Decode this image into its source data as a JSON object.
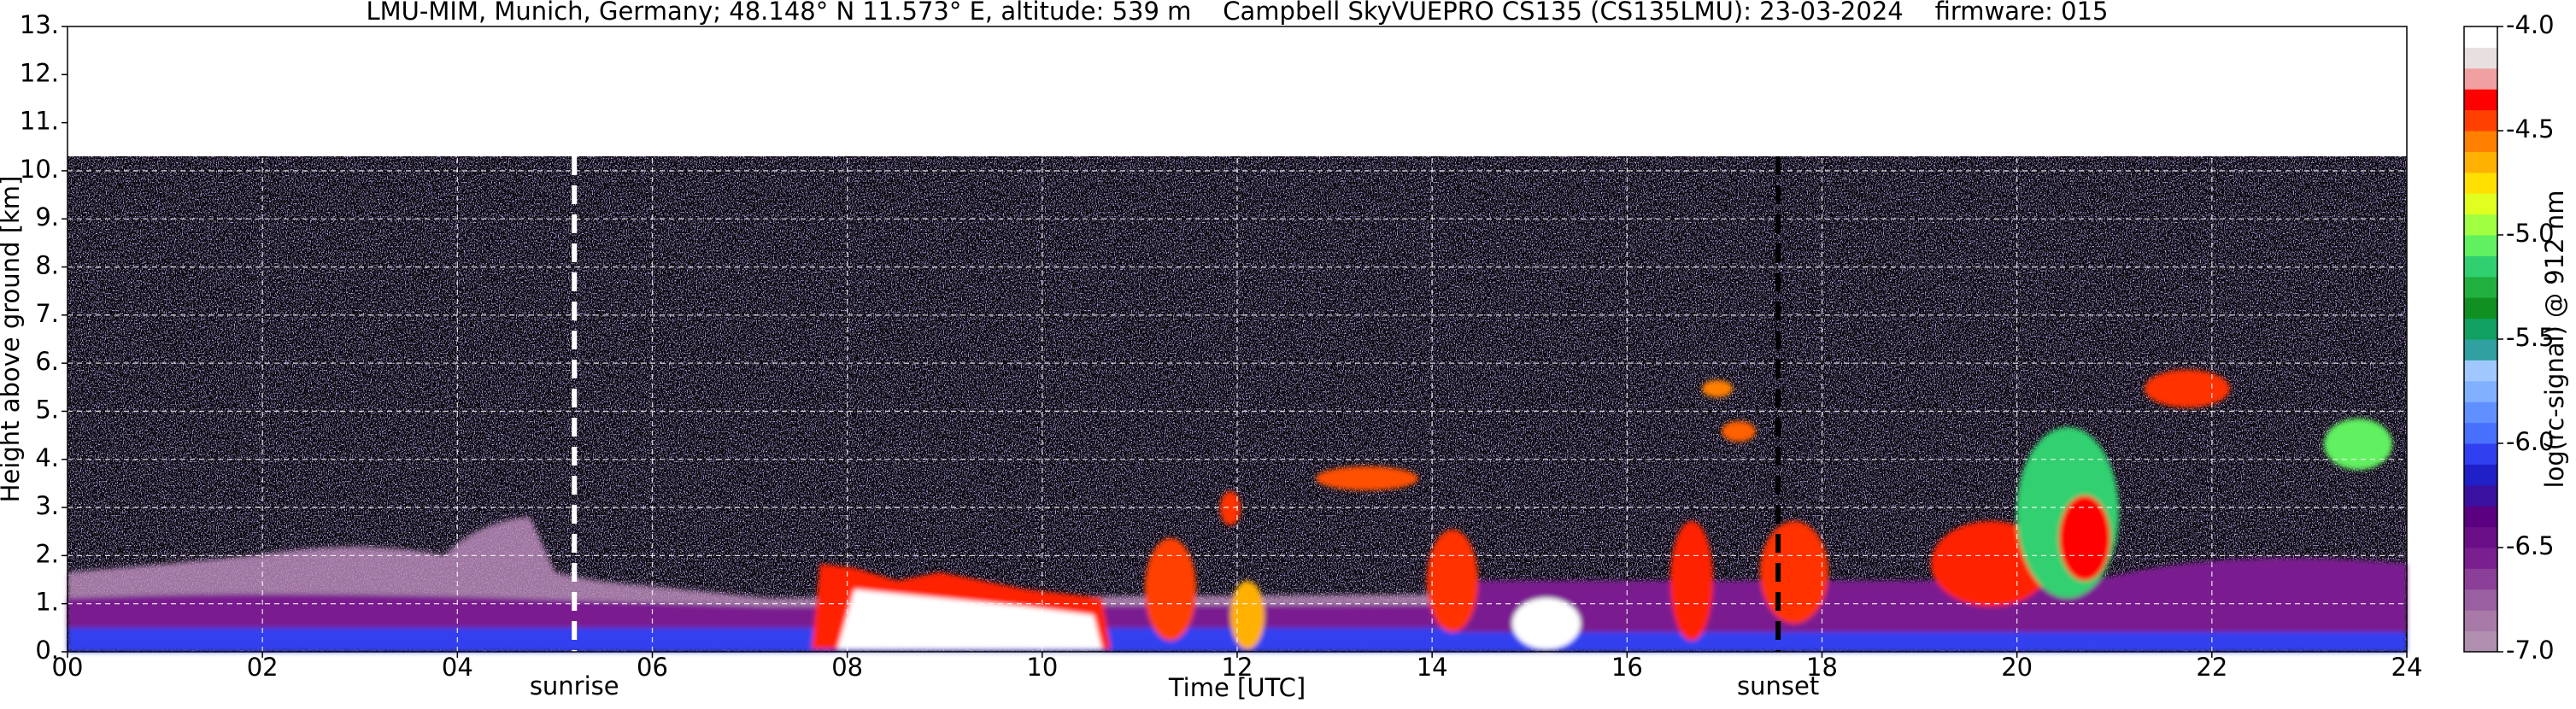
{
  "chart_data": {
    "type": "heatmap",
    "title": "LMU-MIM, Munich, Germany; 48.148° N 11.573° E, altitude: 539 m    Campbell SkyVUEPRO CS135 (CS135LMU): 23-03-2024    firmware: 015",
    "xlabel": "Time [UTC]",
    "ylabel": "Height above ground [km]",
    "xlim": [
      0,
      24
    ],
    "xticks": [
      {
        "value": 0,
        "label": "00"
      },
      {
        "value": 2,
        "label": "02"
      },
      {
        "value": 4,
        "label": "04"
      },
      {
        "value": 6,
        "label": "06"
      },
      {
        "value": 8,
        "label": "08"
      },
      10,
      12,
      14,
      16,
      18,
      20,
      22,
      24
    ],
    "ylim": [
      0,
      13
    ],
    "yticks": [
      {
        "value": 0,
        "label": "0."
      },
      {
        "value": 1,
        "label": "1."
      },
      {
        "value": 2,
        "label": "2."
      },
      {
        "value": 3,
        "label": "3."
      },
      {
        "value": 4,
        "label": "4."
      },
      {
        "value": 5,
        "label": "5."
      },
      {
        "value": 6,
        "label": "6."
      },
      {
        "value": 7,
        "label": "7."
      },
      {
        "value": 8,
        "label": "8."
      },
      {
        "value": 9,
        "label": "9."
      },
      {
        "value": 10,
        "label": "10."
      },
      {
        "value": 11,
        "label": "11."
      },
      {
        "value": 12,
        "label": "12."
      },
      {
        "value": 13,
        "label": "13."
      }
    ],
    "grid": true,
    "events": [
      {
        "label": "sunrise",
        "x": 5.2,
        "color": "#ffffff"
      },
      {
        "label": "sunset",
        "x": 17.55,
        "color": "#000000"
      }
    ],
    "colorbar": {
      "label": "log(rc-signal) @ 912 nm",
      "lim": [
        -7,
        -4
      ],
      "ticks": [
        {
          "value": -7,
          "label": "-7.0"
        },
        -6.5,
        {
          "value": -6,
          "label": "-6.0"
        },
        -5.5,
        {
          "value": -5,
          "label": "-5.0"
        },
        -4.5,
        {
          "value": -4,
          "label": "-4.0"
        }
      ],
      "colors": [
        "#b08fb0",
        "#a77aa8",
        "#9a5fa0",
        "#8c3f98",
        "#7a1f90",
        "#6a0f88",
        "#5a0080",
        "#3a10a0",
        "#2020c8",
        "#3040f0",
        "#4870ff",
        "#6090ff",
        "#80b0ff",
        "#a0c8ff",
        "#30a0a0",
        "#10a060",
        "#109020",
        "#20b040",
        "#30d070",
        "#60f060",
        "#a0ff40",
        "#e0ff20",
        "#ffe000",
        "#ffb000",
        "#ff8000",
        "#ff4000",
        "#ff0000",
        "#f0a0a0",
        "#e8e0e0",
        "#ffffff"
      ]
    }
  }
}
